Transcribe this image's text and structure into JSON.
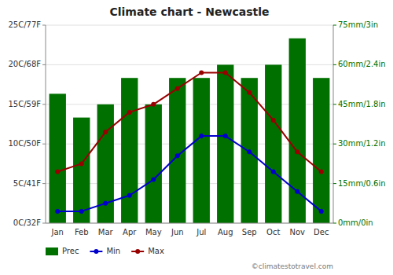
{
  "chart_data": {
    "type": "bar",
    "title": "Climate chart - Newcastle",
    "categories": [
      "Jan",
      "Feb",
      "Mar",
      "Apr",
      "May",
      "Jun",
      "Jul",
      "Aug",
      "Sep",
      "Oct",
      "Nov",
      "Dec"
    ],
    "series": [
      {
        "name": "Prec",
        "type": "bar",
        "axis": "y2",
        "color": "#007000",
        "values": [
          49,
          40,
          45,
          55,
          45,
          55,
          55,
          60,
          55,
          60,
          70,
          55
        ]
      },
      {
        "name": "Min",
        "type": "line",
        "color": "#0000CC",
        "marker": "circle",
        "values": [
          1.5,
          1.5,
          2.5,
          3.5,
          5.5,
          8.5,
          11,
          11,
          9,
          6.5,
          4,
          1.5
        ]
      },
      {
        "name": "Max",
        "type": "line",
        "color": "#990000",
        "marker": "circle",
        "values": [
          6.5,
          7.5,
          11.5,
          14,
          15,
          17,
          19,
          19,
          16.5,
          13,
          9,
          6.5
        ]
      }
    ],
    "ylim": [
      0,
      25
    ],
    "yticks": [
      {
        "value": 0,
        "label": "0C/32F"
      },
      {
        "value": 5,
        "label": "5C/41F"
      },
      {
        "value": 10,
        "label": "10C/50F"
      },
      {
        "value": 15,
        "label": "15C/59F"
      },
      {
        "value": 20,
        "label": "20C/68F"
      },
      {
        "value": 25,
        "label": "25C/77F"
      }
    ],
    "y2lim": [
      0,
      75
    ],
    "y2ticks": [
      {
        "value": 0,
        "label": "0mm/0in"
      },
      {
        "value": 15,
        "label": "15mm/0.6in"
      },
      {
        "value": 30,
        "label": "30mm/1.2in"
      },
      {
        "value": 45,
        "label": "45mm/1.8in"
      },
      {
        "value": 60,
        "label": "60mm/2.4in"
      },
      {
        "value": 75,
        "label": "75mm/3in"
      }
    ],
    "grid": true,
    "legend": "bottom",
    "annotation": "©climatestotravel.com"
  }
}
